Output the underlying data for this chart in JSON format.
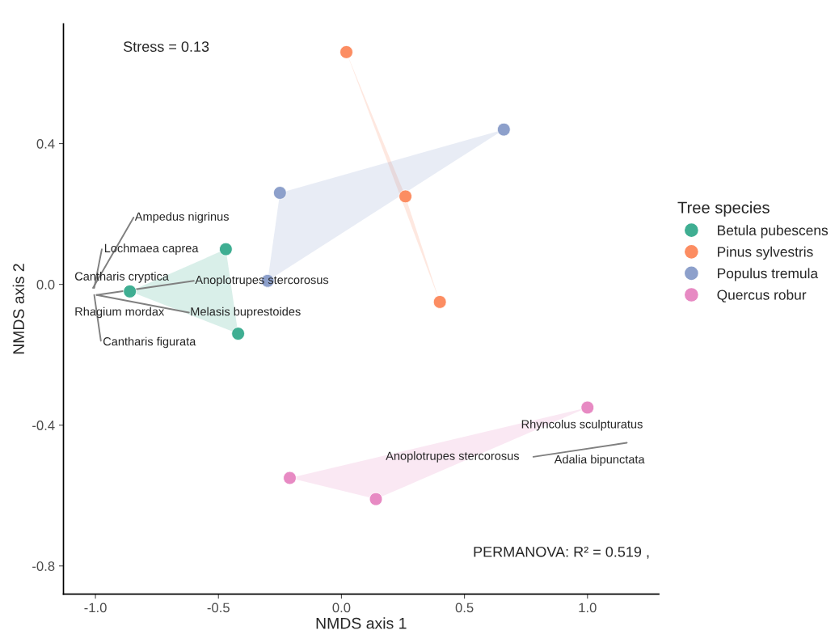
{
  "chart_data": {
    "type": "scatter",
    "xlabel": "NMDS axis 1",
    "ylabel": "NMDS axis 2",
    "legend_title": "Tree species",
    "legend": "right",
    "grid": false,
    "xlim": [
      -1.13,
      1.29
    ],
    "ylim": [
      -0.88,
      0.74
    ],
    "xticks": [
      {
        "value": -1.0,
        "label": "-1.0"
      },
      {
        "value": -0.5,
        "label": "-0.5"
      },
      {
        "value": 0.0,
        "label": "0.0"
      },
      {
        "value": 0.5,
        "label": "0.5"
      },
      {
        "value": 1.0,
        "label": "1.0"
      }
    ],
    "yticks": [
      {
        "value": -0.8,
        "label": "-0.8"
      },
      {
        "value": -0.4,
        "label": "-0.4"
      },
      {
        "value": 0.0,
        "label": "0.0"
      },
      {
        "value": 0.4,
        "label": "0.4"
      }
    ],
    "series": [
      {
        "name": "Betula pubescens",
        "color": "#3fae92",
        "marker": "circle",
        "x": [
          -0.47,
          -0.86,
          -0.42
        ],
        "values": [
          0.1,
          -0.02,
          -0.14
        ]
      },
      {
        "name": "Pinus sylvestris",
        "color": "#fc8d62",
        "marker": "circle",
        "x": [
          0.02,
          0.26,
          0.4
        ],
        "values": [
          0.66,
          0.25,
          -0.05
        ]
      },
      {
        "name": "Populus tremula",
        "color": "#8da0cb",
        "marker": "circle",
        "x": [
          0.66,
          -0.25,
          -0.3
        ],
        "values": [
          0.44,
          0.26,
          0.01
        ]
      },
      {
        "name": "Quercus robur",
        "color": "#e78ac3",
        "marker": "circle",
        "x": [
          1.0,
          -0.21,
          0.14
        ],
        "values": [
          -0.35,
          -0.55,
          -0.61
        ]
      },
      {
        "type": "area",
        "marker": "none",
        "color": "#3fae92",
        "x": [
          -0.47,
          -0.86,
          -0.42
        ],
        "values": [
          0.1,
          -0.02,
          -0.14
        ]
      },
      {
        "type": "area",
        "marker": "none",
        "color": "#fc8d62",
        "x": [
          0.02,
          0.26,
          0.4
        ],
        "values": [
          0.66,
          0.25,
          -0.05
        ]
      },
      {
        "type": "area",
        "marker": "none",
        "color": "#8da0cb",
        "x": [
          0.66,
          -0.25,
          -0.3
        ],
        "values": [
          0.44,
          0.26,
          0.01
        ]
      },
      {
        "type": "area",
        "marker": "none",
        "color": "#e78ac3",
        "x": [
          1.0,
          -0.21,
          0.14
        ],
        "values": [
          -0.35,
          -0.55,
          -0.61
        ]
      },
      {
        "type": "line",
        "color": "#808080",
        "marker": "none",
        "x": [
          -1.01,
          -0.845
        ],
        "values": [
          -0.01,
          0.19
        ]
      },
      {
        "type": "line",
        "color": "#808080",
        "marker": "none",
        "x": [
          -1.005,
          -0.974
        ],
        "values": [
          -0.01,
          0.1
        ]
      },
      {
        "type": "line",
        "color": "#808080",
        "marker": "none",
        "x": [
          -0.995,
          -0.6
        ],
        "values": [
          -0.03,
          0.01
        ]
      },
      {
        "type": "line",
        "color": "#808080",
        "marker": "none",
        "x": [
          -0.995,
          -0.62
        ],
        "values": [
          -0.03,
          -0.08
        ]
      },
      {
        "type": "line",
        "color": "#808080",
        "marker": "none",
        "x": [
          -1.005,
          -0.978
        ],
        "values": [
          -0.03,
          -0.16
        ]
      },
      {
        "type": "line",
        "color": "#808080",
        "marker": "none",
        "x": [
          0.78,
          1.16
        ],
        "values": [
          -0.49,
          -0.45
        ]
      }
    ],
    "annotations": [
      "Stress = 0.13",
      "PERMANOVA: R² = 0.519 ,",
      "Cantharis cryptica",
      "Rhagium mordax",
      "Rhyncolus sculpturatus",
      "Anoplotrupes stercorosus",
      "Adalia bipunctata",
      {
        "text": "Ampedus nigrinus",
        "x": -0.84,
        "y": 0.19
      },
      {
        "text": "Lochmaea caprea",
        "x": -0.965,
        "y": 0.1
      },
      {
        "text": "Anoplotrupes stercorosus",
        "x": -0.595,
        "y": 0.01
      },
      {
        "text": "Melasis buprestoides",
        "x": -0.615,
        "y": -0.08
      },
      {
        "text": "Cantharis figurata",
        "x": -0.97,
        "y": -0.165
      }
    ]
  }
}
